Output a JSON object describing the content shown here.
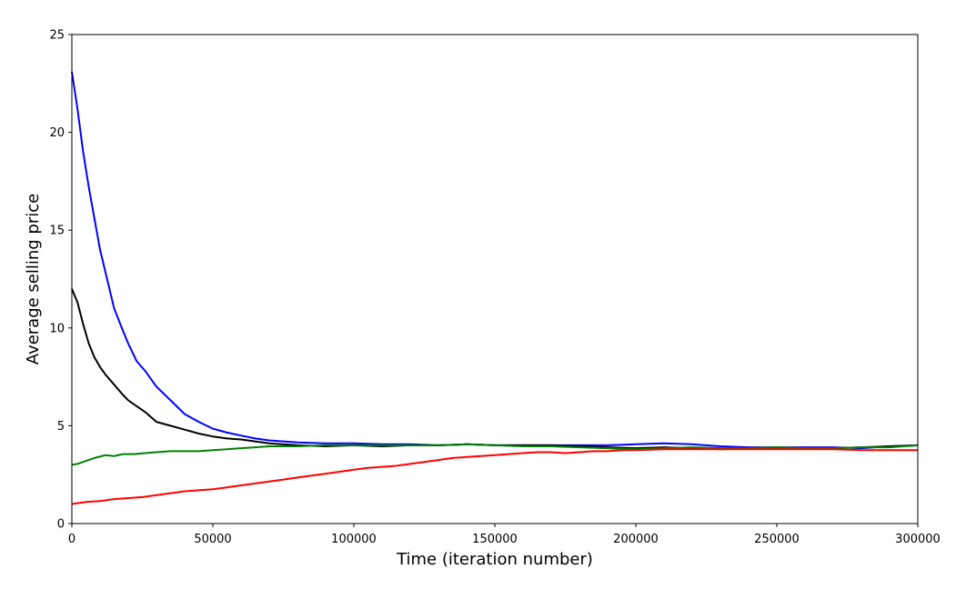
{
  "chart_data": {
    "type": "line",
    "title": "",
    "xlabel": "Time (iteration number)",
    "ylabel": "Average selling price",
    "xlim": [
      0,
      300000
    ],
    "ylim": [
      0,
      25
    ],
    "xticks": [
      0,
      50000,
      100000,
      150000,
      200000,
      250000,
      300000
    ],
    "yticks": [
      0,
      5,
      10,
      15,
      20,
      25
    ],
    "grid": false,
    "legend": "none",
    "series": [
      {
        "color": "#0000ff",
        "x": [
          0,
          2000,
          4000,
          6000,
          8000,
          10000,
          12000,
          15000,
          18000,
          20000,
          23000,
          26000,
          30000,
          35000,
          40000,
          45000,
          50000,
          55000,
          60000,
          65000,
          70000,
          80000,
          90000,
          100000,
          110000,
          120000,
          130000,
          140000,
          150000,
          160000,
          170000,
          180000,
          190000,
          200000,
          210000,
          220000,
          230000,
          240000,
          250000,
          260000,
          270000,
          280000,
          290000,
          300000
        ],
        "y": [
          23.1,
          21.2,
          19.0,
          17.2,
          15.6,
          14.0,
          12.8,
          11.0,
          9.9,
          9.2,
          8.3,
          7.8,
          7.0,
          6.3,
          5.6,
          5.2,
          4.85,
          4.65,
          4.5,
          4.35,
          4.25,
          4.15,
          4.1,
          4.1,
          4.05,
          4.05,
          4.0,
          4.05,
          4.0,
          4.0,
          4.0,
          4.0,
          4.0,
          4.05,
          4.1,
          4.05,
          3.95,
          3.9,
          3.9,
          3.9,
          3.9,
          3.85,
          3.95,
          4.0
        ]
      },
      {
        "color": "#000000",
        "x": [
          0,
          2000,
          4000,
          6000,
          8000,
          10000,
          12000,
          15000,
          18000,
          20000,
          23000,
          26000,
          30000,
          35000,
          40000,
          45000,
          50000,
          55000,
          60000,
          65000,
          70000,
          80000,
          90000,
          100000,
          110000,
          120000,
          130000,
          140000,
          150000,
          160000,
          170000,
          180000,
          190000,
          200000,
          210000,
          220000,
          230000,
          240000,
          250000,
          260000,
          270000,
          280000,
          290000,
          300000
        ],
        "y": [
          12.0,
          11.3,
          10.2,
          9.2,
          8.5,
          8.0,
          7.6,
          7.1,
          6.6,
          6.3,
          6.0,
          5.7,
          5.2,
          5.0,
          4.8,
          4.6,
          4.45,
          4.35,
          4.3,
          4.2,
          4.1,
          4.0,
          3.95,
          4.0,
          3.95,
          4.0,
          4.0,
          4.05,
          4.0,
          4.0,
          4.0,
          3.95,
          3.9,
          3.85,
          3.9,
          3.85,
          3.8,
          3.85,
          3.9,
          3.85,
          3.85,
          3.9,
          3.95,
          4.0
        ]
      },
      {
        "color": "#008000",
        "x": [
          0,
          2000,
          5000,
          8000,
          12000,
          15000,
          18000,
          22000,
          26000,
          30000,
          35000,
          40000,
          45000,
          50000,
          55000,
          60000,
          65000,
          70000,
          80000,
          90000,
          100000,
          110000,
          120000,
          130000,
          140000,
          150000,
          160000,
          170000,
          180000,
          190000,
          200000,
          210000,
          220000,
          230000,
          240000,
          250000,
          260000,
          270000,
          280000,
          290000,
          300000
        ],
        "y": [
          3.0,
          3.05,
          3.2,
          3.35,
          3.5,
          3.45,
          3.55,
          3.55,
          3.6,
          3.65,
          3.7,
          3.7,
          3.7,
          3.75,
          3.8,
          3.85,
          3.9,
          3.95,
          3.95,
          4.0,
          4.0,
          4.0,
          4.0,
          4.0,
          4.05,
          4.0,
          3.95,
          3.95,
          3.9,
          3.85,
          3.8,
          3.85,
          3.9,
          3.85,
          3.85,
          3.9,
          3.85,
          3.85,
          3.9,
          3.9,
          4.0
        ]
      },
      {
        "color": "#ff0000",
        "x": [
          0,
          5000,
          10000,
          15000,
          20000,
          25000,
          30000,
          35000,
          40000,
          45000,
          50000,
          55000,
          60000,
          65000,
          70000,
          75000,
          80000,
          85000,
          90000,
          95000,
          100000,
          105000,
          110000,
          115000,
          120000,
          125000,
          130000,
          135000,
          140000,
          145000,
          150000,
          155000,
          160000,
          165000,
          170000,
          175000,
          180000,
          185000,
          190000,
          195000,
          200000,
          210000,
          220000,
          230000,
          240000,
          250000,
          260000,
          270000,
          280000,
          290000,
          300000
        ],
        "y": [
          1.0,
          1.1,
          1.15,
          1.25,
          1.3,
          1.35,
          1.45,
          1.55,
          1.65,
          1.7,
          1.75,
          1.85,
          1.95,
          2.05,
          2.15,
          2.25,
          2.35,
          2.45,
          2.55,
          2.65,
          2.75,
          2.85,
          2.9,
          2.95,
          3.05,
          3.15,
          3.25,
          3.35,
          3.4,
          3.45,
          3.5,
          3.55,
          3.6,
          3.65,
          3.65,
          3.6,
          3.65,
          3.7,
          3.7,
          3.75,
          3.75,
          3.8,
          3.8,
          3.8,
          3.8,
          3.8,
          3.8,
          3.8,
          3.75,
          3.75,
          3.75
        ]
      }
    ]
  }
}
